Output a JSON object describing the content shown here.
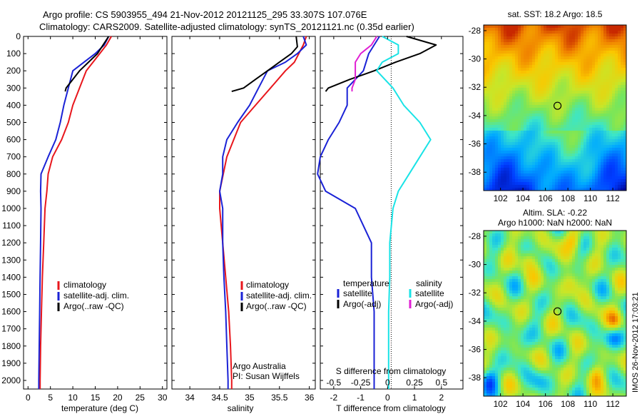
{
  "header": {
    "line1": "Argo profile: CS 5903955_494 21-Nov-2012 20121125_295 33.307S 107.076E",
    "line2": "Climatology: CARS2009. Satellite-adjusted climatology: synTS_20121121.nc (0.35d earlier)"
  },
  "colors": {
    "climatology": "#e8161c",
    "satellite": "#1a22d6",
    "argo": "#000000",
    "sal_satellite": "#19e3e6",
    "sal_argo": "#e01fd3"
  },
  "depth_axis": {
    "min": 0,
    "max": 2050,
    "ticks": [
      0,
      100,
      200,
      300,
      400,
      500,
      600,
      700,
      800,
      900,
      1000,
      1100,
      1200,
      1300,
      1400,
      1500,
      1600,
      1700,
      1800,
      1900,
      2000
    ]
  },
  "chart_data": [
    {
      "type": "line",
      "id": "temperature",
      "xlabel": "temperature (deg C)",
      "xlim": [
        -1,
        31
      ],
      "xticks": [
        0,
        5,
        10,
        15,
        20,
        25,
        30
      ],
      "legend": [
        "climatology",
        "satellite-adj. clim.",
        "Argo(..raw -QC)"
      ],
      "series": [
        {
          "name": "climatology",
          "color": "#e8161c",
          "points": [
            [
              18.6,
              0
            ],
            [
              17.5,
              50
            ],
            [
              16,
              100
            ],
            [
              14.5,
              150
            ],
            [
              13,
              200
            ],
            [
              11.5,
              300
            ],
            [
              10,
              400
            ],
            [
              9,
              500
            ],
            [
              7.5,
              600
            ],
            [
              5.5,
              700
            ],
            [
              4.5,
              800
            ],
            [
              4.2,
              900
            ],
            [
              3.8,
              1000
            ],
            [
              3.5,
              1200
            ],
            [
              3.2,
              1400
            ],
            [
              3,
              1600
            ],
            [
              2.8,
              1800
            ],
            [
              2.7,
              2000
            ],
            [
              2.7,
              2050
            ]
          ]
        },
        {
          "name": "satellite-adj. clim.",
          "color": "#1a22d6",
          "points": [
            [
              18,
              0
            ],
            [
              17,
              50
            ],
            [
              15,
              100
            ],
            [
              12.5,
              150
            ],
            [
              10,
              200
            ],
            [
              9,
              300
            ],
            [
              8,
              400
            ],
            [
              7.2,
              500
            ],
            [
              6.2,
              600
            ],
            [
              4.5,
              700
            ],
            [
              2.9,
              800
            ],
            [
              2.8,
              900
            ],
            [
              2.9,
              1000
            ],
            [
              2.8,
              1200
            ],
            [
              2.7,
              1400
            ],
            [
              2.6,
              1600
            ],
            [
              2.5,
              1800
            ],
            [
              2.4,
              2000
            ],
            [
              2.4,
              2050
            ]
          ]
        },
        {
          "name": "Argo(..raw -QC)",
          "color": "#000000",
          "points": [
            [
              18,
              0
            ],
            [
              17,
              40
            ],
            [
              15.5,
              100
            ],
            [
              13.5,
              150
            ],
            [
              11.5,
              200
            ],
            [
              10,
              250
            ],
            [
              8.5,
              300
            ],
            [
              8.3,
              320
            ]
          ]
        }
      ]
    },
    {
      "type": "line",
      "id": "salinity",
      "xlabel": "salinity",
      "xlim": [
        33.7,
        36.1
      ],
      "xticks": [
        34,
        34.5,
        35,
        35.5,
        36
      ],
      "xticklabels": [
        "34",
        "34.5",
        "35",
        "35.5",
        "36"
      ],
      "legend": [
        "climatology",
        "satellite-adj. clim.",
        "Argo(..raw -QC)"
      ],
      "annotation": [
        "Argo Australia",
        "PI: Susan Wijffels"
      ],
      "series": [
        {
          "name": "climatology",
          "color": "#e8161c",
          "points": [
            [
              35.95,
              0
            ],
            [
              35.9,
              50
            ],
            [
              35.75,
              150
            ],
            [
              35.6,
              200
            ],
            [
              35.35,
              300
            ],
            [
              35.1,
              400
            ],
            [
              34.85,
              500
            ],
            [
              34.62,
              700
            ],
            [
              34.5,
              900
            ],
            [
              34.5,
              1000
            ],
            [
              34.55,
              1200
            ],
            [
              34.6,
              1400
            ],
            [
              34.65,
              1600
            ],
            [
              34.68,
              1800
            ],
            [
              34.7,
              2000
            ],
            [
              34.7,
              2050
            ]
          ]
        },
        {
          "name": "satellite-adj. clim.",
          "color": "#1a22d6",
          "points": [
            [
              35.9,
              0
            ],
            [
              35.95,
              50
            ],
            [
              35.8,
              100
            ],
            [
              35.6,
              150
            ],
            [
              35.3,
              200
            ],
            [
              35.15,
              300
            ],
            [
              35,
              400
            ],
            [
              34.8,
              500
            ],
            [
              34.62,
              600
            ],
            [
              34.55,
              700
            ],
            [
              34.55,
              800
            ],
            [
              34.5,
              900
            ],
            [
              34.55,
              1000
            ],
            [
              34.55,
              1200
            ],
            [
              34.57,
              1400
            ],
            [
              34.6,
              1600
            ],
            [
              34.62,
              1800
            ],
            [
              34.64,
              2000
            ],
            [
              34.64,
              2050
            ]
          ]
        },
        {
          "name": "Argo(..raw -QC)",
          "color": "#000000",
          "points": [
            [
              35.78,
              0
            ],
            [
              35.8,
              60
            ],
            [
              35.7,
              100
            ],
            [
              35.5,
              150
            ],
            [
              35.3,
              200
            ],
            [
              35.1,
              250
            ],
            [
              34.9,
              300
            ],
            [
              34.7,
              320
            ]
          ]
        }
      ]
    },
    {
      "type": "line",
      "id": "difference",
      "xlabel": "T difference from climatology",
      "xlabel_top": "S difference from climatology",
      "xlim": [
        -2.5,
        2.8
      ],
      "xticks": [
        -2,
        -1,
        0,
        1,
        2
      ],
      "top_ticks": [
        -0.5,
        -0.25,
        0,
        0.25,
        0.5
      ],
      "top_ticklabels": [
        "-0.5",
        "-0.25",
        "0",
        "0.25",
        "0.5"
      ],
      "legend_temperature_title": "temperature",
      "legend_salinity_title": "salinity",
      "legend": [
        "satellite",
        "Argo(-adj)",
        "satellite",
        "Argo(-adj)"
      ],
      "series": [
        {
          "name": "satellite",
          "group": "temperature",
          "color": "#1a22d6",
          "points": [
            [
              -0.3,
              0
            ],
            [
              -0.5,
              50
            ],
            [
              -0.7,
              100
            ],
            [
              -0.9,
              200
            ],
            [
              -1.5,
              300
            ],
            [
              -1.5,
              400
            ],
            [
              -1.8,
              500
            ],
            [
              -2.2,
              600
            ],
            [
              -2.5,
              700
            ],
            [
              -2.6,
              800
            ],
            [
              -2.3,
              900
            ],
            [
              -1.2,
              1000
            ],
            [
              -0.6,
              1200
            ],
            [
              -0.6,
              1400
            ],
            [
              -0.5,
              1600
            ],
            [
              -0.5,
              1800
            ],
            [
              -0.5,
              2000
            ],
            [
              -0.5,
              2050
            ]
          ]
        },
        {
          "name": "Argo(-adj)",
          "group": "temperature",
          "color": "#000000",
          "points": [
            [
              0.7,
              0
            ],
            [
              1.8,
              50
            ],
            [
              1.2,
              100
            ],
            [
              0.3,
              150
            ],
            [
              -0.5,
              200
            ],
            [
              -1.4,
              250
            ],
            [
              -2.2,
              300
            ],
            [
              -2.3,
              320
            ]
          ]
        },
        {
          "name": "satellite",
          "group": "salinity",
          "color": "#19e3e6",
          "points": [
            [
              -0.05,
              0
            ],
            [
              0.1,
              50
            ],
            [
              0.1,
              100
            ],
            [
              -0.05,
              150
            ],
            [
              -0.1,
              200
            ],
            [
              0.05,
              300
            ],
            [
              0.15,
              400
            ],
            [
              0.3,
              500
            ],
            [
              0.4,
              600
            ],
            [
              0.3,
              700
            ],
            [
              0.2,
              800
            ],
            [
              0.1,
              900
            ],
            [
              0.05,
              1000
            ],
            [
              0.02,
              1200
            ],
            [
              0.02,
              1400
            ],
            [
              0.01,
              1600
            ],
            [
              0.01,
              1800
            ],
            [
              0.01,
              2000
            ],
            [
              0.01,
              2050
            ]
          ]
        },
        {
          "name": "Argo(-adj)",
          "group": "salinity",
          "color": "#e01fd3",
          "points": [
            [
              -0.1,
              0
            ],
            [
              -0.15,
              50
            ],
            [
              -0.25,
              100
            ],
            [
              -0.3,
              150
            ],
            [
              -0.3,
              200
            ],
            [
              -0.3,
              250
            ],
            [
              -0.33,
              300
            ],
            [
              -0.33,
              320
            ]
          ]
        }
      ]
    },
    {
      "type": "heatmap",
      "id": "sst-map",
      "title": "sat. SST: 18.2  Argo: 18.5",
      "xlim": [
        100.5,
        113.2
      ],
      "ylim": [
        -39.3,
        -27.6
      ],
      "xticks": [
        102,
        104,
        106,
        108,
        110,
        112
      ],
      "yticks": [
        -28,
        -30,
        -32,
        -34,
        -36,
        -38
      ],
      "marker": {
        "lon": 107.076,
        "lat": -33.307
      }
    },
    {
      "type": "heatmap",
      "id": "sla-map",
      "title": "Altim. SLA: -0.22",
      "subtitle": "Argo h1000: NaN h2000: NaN",
      "xlim": [
        100.5,
        113.2
      ],
      "ylim": [
        -39.3,
        -27.6
      ],
      "xticks": [
        102,
        104,
        106,
        108,
        110,
        112
      ],
      "yticks": [
        -28,
        -30,
        -32,
        -34,
        -36,
        -38
      ],
      "marker": {
        "lon": 107.076,
        "lat": -33.307
      }
    }
  ],
  "side_label": "IMOS 26-Nov-2012 17:03:21"
}
